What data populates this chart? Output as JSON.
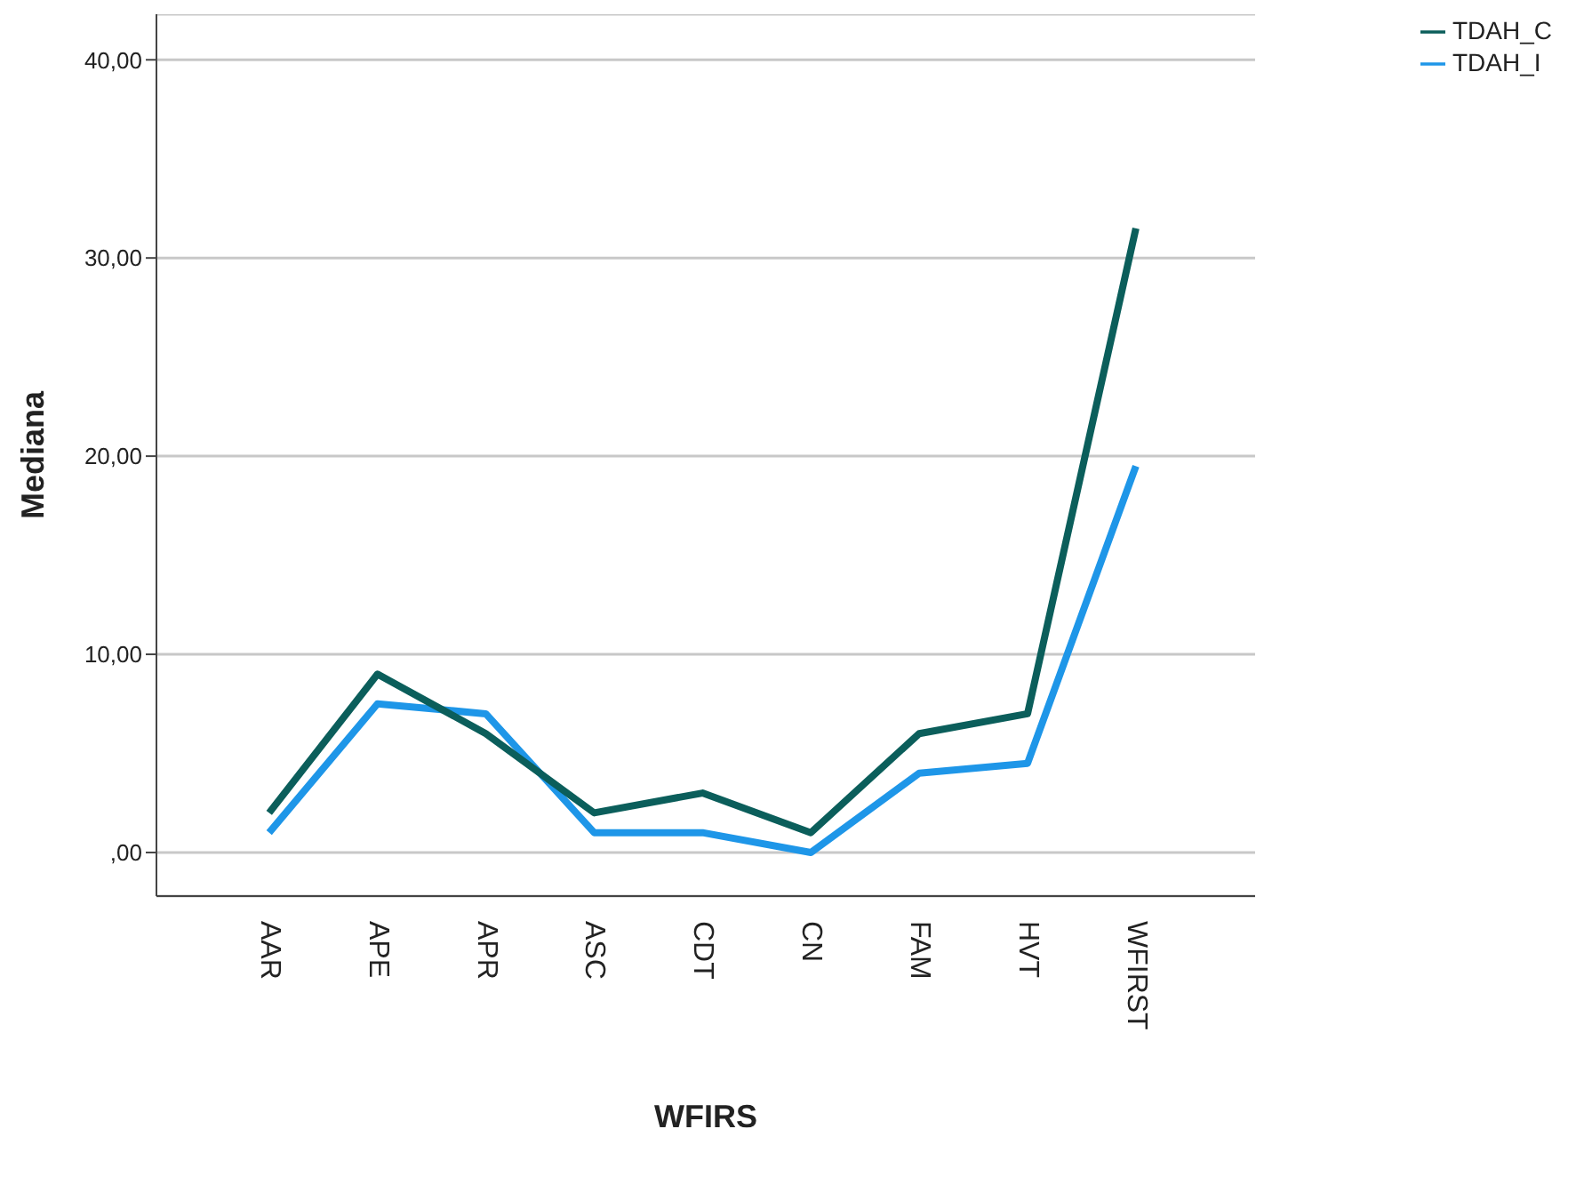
{
  "chart_data": {
    "type": "line",
    "xlabel": "WFIRS",
    "ylabel": "Mediana",
    "categories": [
      "AAR",
      "APE",
      "APR",
      "ASC",
      "CDT",
      "CN",
      "FAM",
      "HVT",
      "WFIRST"
    ],
    "series": [
      {
        "name": "TDAH_I",
        "color": "#1e96e8",
        "values": [
          1,
          7.5,
          7,
          1,
          1,
          0,
          4,
          4.5,
          19.5
        ]
      },
      {
        "name": "TDAH_C",
        "color": "#0b5e5b",
        "values": [
          2,
          9,
          6,
          2,
          3,
          1,
          6,
          7,
          31.5
        ]
      }
    ],
    "ylim": [
      -2.2,
      42.3
    ],
    "yticks": [
      {
        "value": 0,
        "label": ",00"
      },
      {
        "value": 10,
        "label": "10,00"
      },
      {
        "value": 20,
        "label": "20,00"
      },
      {
        "value": 30,
        "label": "30,00"
      },
      {
        "value": 40,
        "label": "40,00"
      }
    ],
    "grid": "y",
    "legend": "top right",
    "marker": "none",
    "line_style": "solid"
  }
}
